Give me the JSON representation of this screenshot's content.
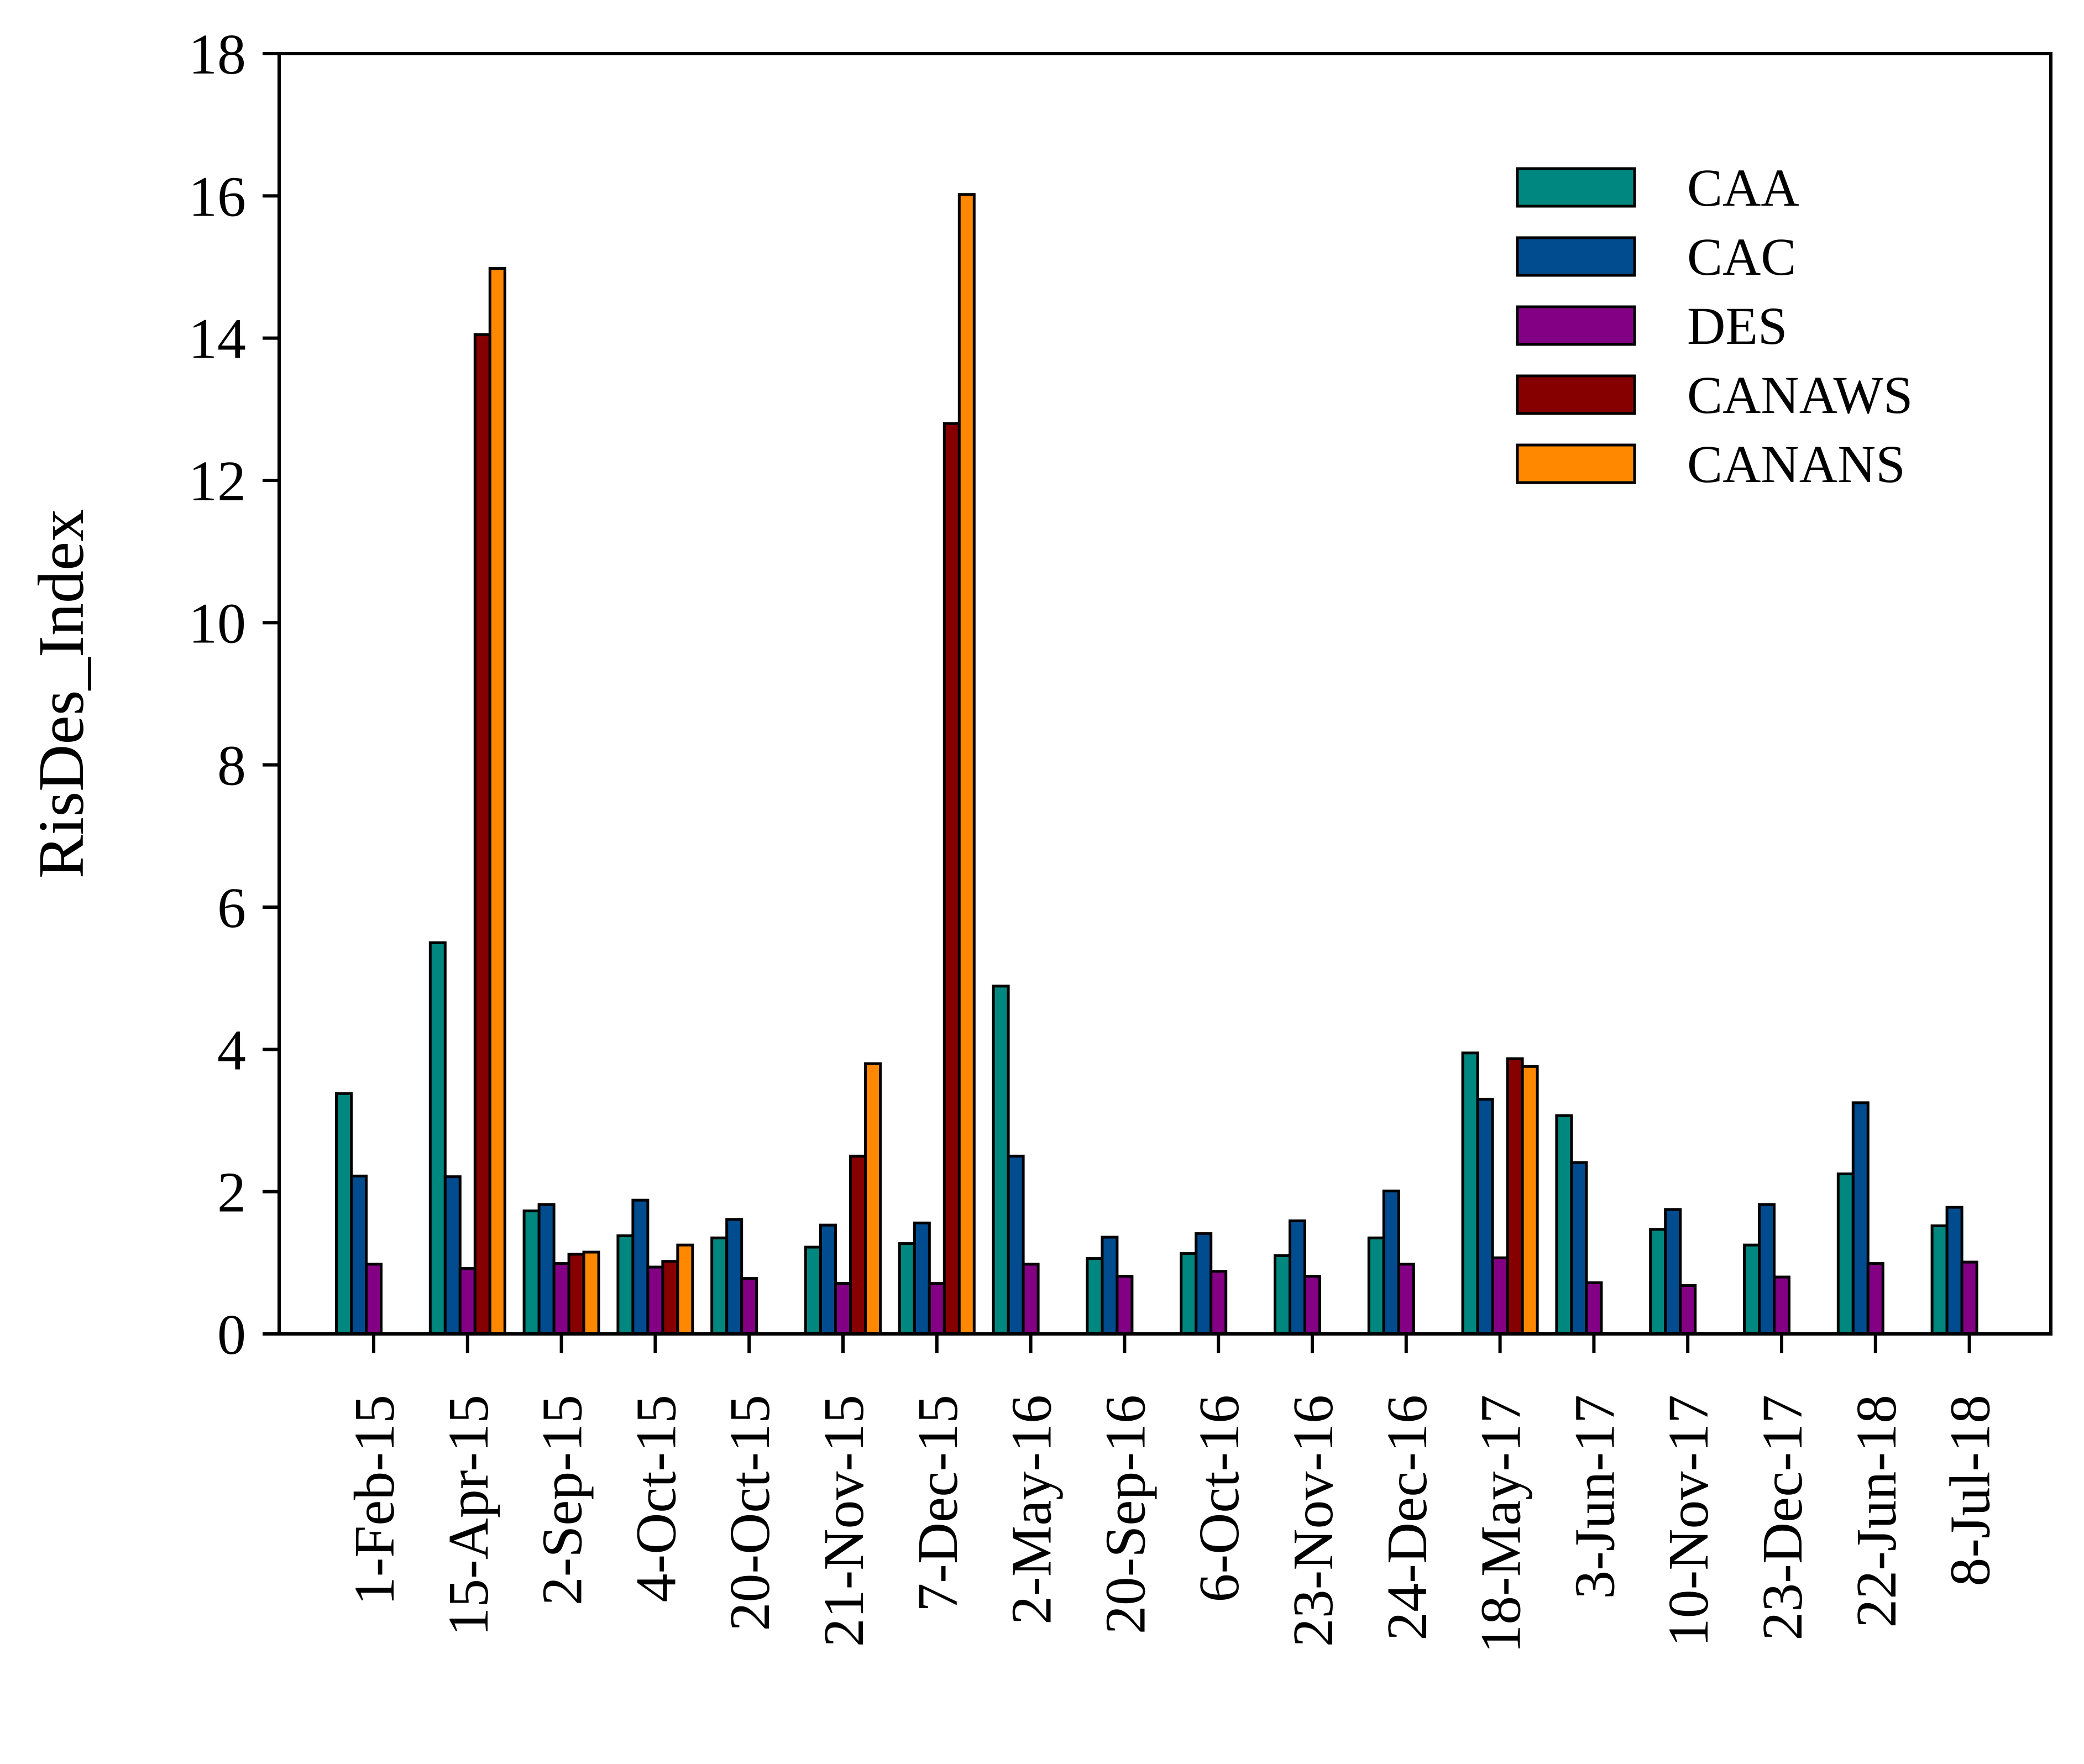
{
  "chart_data": {
    "type": "bar",
    "title": "",
    "xlabel": "",
    "ylabel": "RisDes_Index",
    "ylim": [
      0,
      18
    ],
    "yticks": [
      "0",
      "2",
      "4",
      "6",
      "8",
      "10",
      "12",
      "14",
      "16",
      "18"
    ],
    "legend_position": "top-right",
    "categories": [
      "1-Feb-15",
      "15-Apr-15",
      "2-Sep-15",
      "4-Oct-15",
      "20-Oct-15",
      "21-Nov-15",
      "7-Dec-15",
      "2-May-16",
      "20-Sep-16",
      "6-Oct-16",
      "23-Nov-16",
      "24-Dec-16",
      "18-May-17",
      "3-Jun-17",
      "10-Nov-17",
      "23-Dec-17",
      "22-Jun-18",
      "8-Jul-18"
    ],
    "series": [
      {
        "name": "CAA",
        "color": "#00877F",
        "values": [
          3.38,
          5.5,
          1.73,
          1.38,
          1.35,
          1.22,
          1.27,
          4.89,
          1.06,
          1.13,
          1.1,
          1.35,
          3.95,
          3.07,
          1.47,
          1.25,
          2.25,
          1.52
        ]
      },
      {
        "name": "CAC",
        "color": "#004C8F",
        "values": [
          2.22,
          2.21,
          1.82,
          1.88,
          1.61,
          1.53,
          1.56,
          2.5,
          1.36,
          1.41,
          1.59,
          2.01,
          3.3,
          2.41,
          1.75,
          1.82,
          3.25,
          1.78
        ]
      },
      {
        "name": "DES",
        "color": "#830085",
        "values": [
          0.98,
          0.92,
          0.99,
          0.94,
          0.78,
          0.71,
          0.71,
          0.98,
          0.81,
          0.88,
          0.81,
          0.98,
          1.07,
          0.72,
          0.68,
          0.8,
          0.99,
          1.01
        ]
      },
      {
        "name": "CANAWS",
        "color": "#870000",
        "values": [
          null,
          14.05,
          1.12,
          1.02,
          null,
          2.5,
          12.8,
          null,
          null,
          null,
          null,
          null,
          3.87,
          null,
          null,
          null,
          null,
          null
        ]
      },
      {
        "name": "CANANS",
        "color": "#FF8800",
        "values": [
          null,
          14.98,
          1.15,
          1.25,
          null,
          3.8,
          16.02,
          null,
          null,
          null,
          null,
          null,
          3.76,
          null,
          null,
          null,
          null,
          null
        ]
      }
    ]
  }
}
